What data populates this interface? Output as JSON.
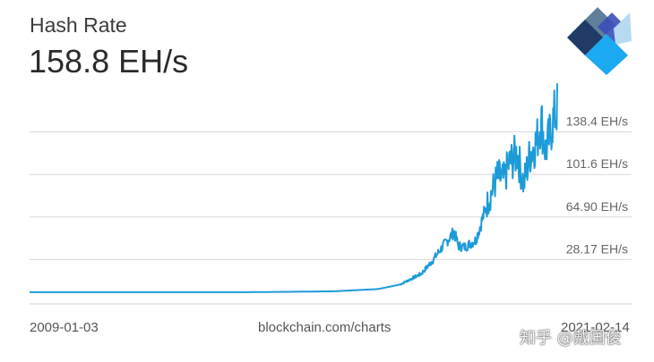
{
  "header": {
    "title": "Hash Rate",
    "value": "158.8 EH/s"
  },
  "logo": {
    "icon": "blockchain-cube-logo-icon",
    "colors": [
      "#1f3b66",
      "#5a8fc4",
      "#3fa9f5",
      "#b7d9f2"
    ]
  },
  "colors": {
    "line": "#1c9bd8",
    "grid": "#d9d9d9",
    "label": "#666666"
  },
  "footer": {
    "start_date": "2009-01-03",
    "source": "blockchain.com/charts",
    "end_date": "2021-02-14"
  },
  "watermark": "知乎 @戴国俊",
  "chart_data": {
    "type": "line",
    "title": "Hash Rate",
    "series": [
      {
        "values_eh_s": [
          [
            2009.0,
            0
          ],
          [
            2010.0,
            0
          ],
          [
            2011.0,
            1e-05
          ],
          [
            2012.0,
            2e-05
          ],
          [
            2013.0,
            0.0003
          ],
          [
            2014.0,
            0.02
          ],
          [
            2015.0,
            0.35
          ],
          [
            2016.0,
            0.8
          ],
          [
            2017.0,
            2.7
          ],
          [
            2017.5,
            6.5
          ],
          [
            2018.0,
            16
          ],
          [
            2018.25,
            27
          ],
          [
            2018.5,
            40
          ],
          [
            2018.75,
            52
          ],
          [
            2018.85,
            40
          ],
          [
            2019.0,
            39
          ],
          [
            2019.25,
            45
          ],
          [
            2019.5,
            75
          ],
          [
            2019.6,
            85
          ],
          [
            2019.75,
            100
          ],
          [
            2019.9,
            97
          ],
          [
            2020.0,
            110
          ],
          [
            2020.2,
            120
          ],
          [
            2020.35,
            93
          ],
          [
            2020.5,
            120
          ],
          [
            2020.65,
            130
          ],
          [
            2020.75,
            150
          ],
          [
            2020.85,
            122
          ],
          [
            2020.95,
            135
          ],
          [
            2021.0,
            145
          ],
          [
            2021.08,
            155
          ],
          [
            2021.12,
            158.8
          ]
        ]
      }
    ],
    "x_range": [
      "2009-01-03",
      "2021-02-14"
    ],
    "y_ticks": [
      {
        "value": 28.17,
        "label": "28.17 EH/s"
      },
      {
        "value": 64.9,
        "label": "64.90 EH/s"
      },
      {
        "value": 101.6,
        "label": "101.6 EH/s"
      },
      {
        "value": 138.4,
        "label": "138.4 EH/s"
      }
    ],
    "ylim": [
      -8.56,
      175.1
    ],
    "grid": true,
    "y_axis_side": "right"
  }
}
